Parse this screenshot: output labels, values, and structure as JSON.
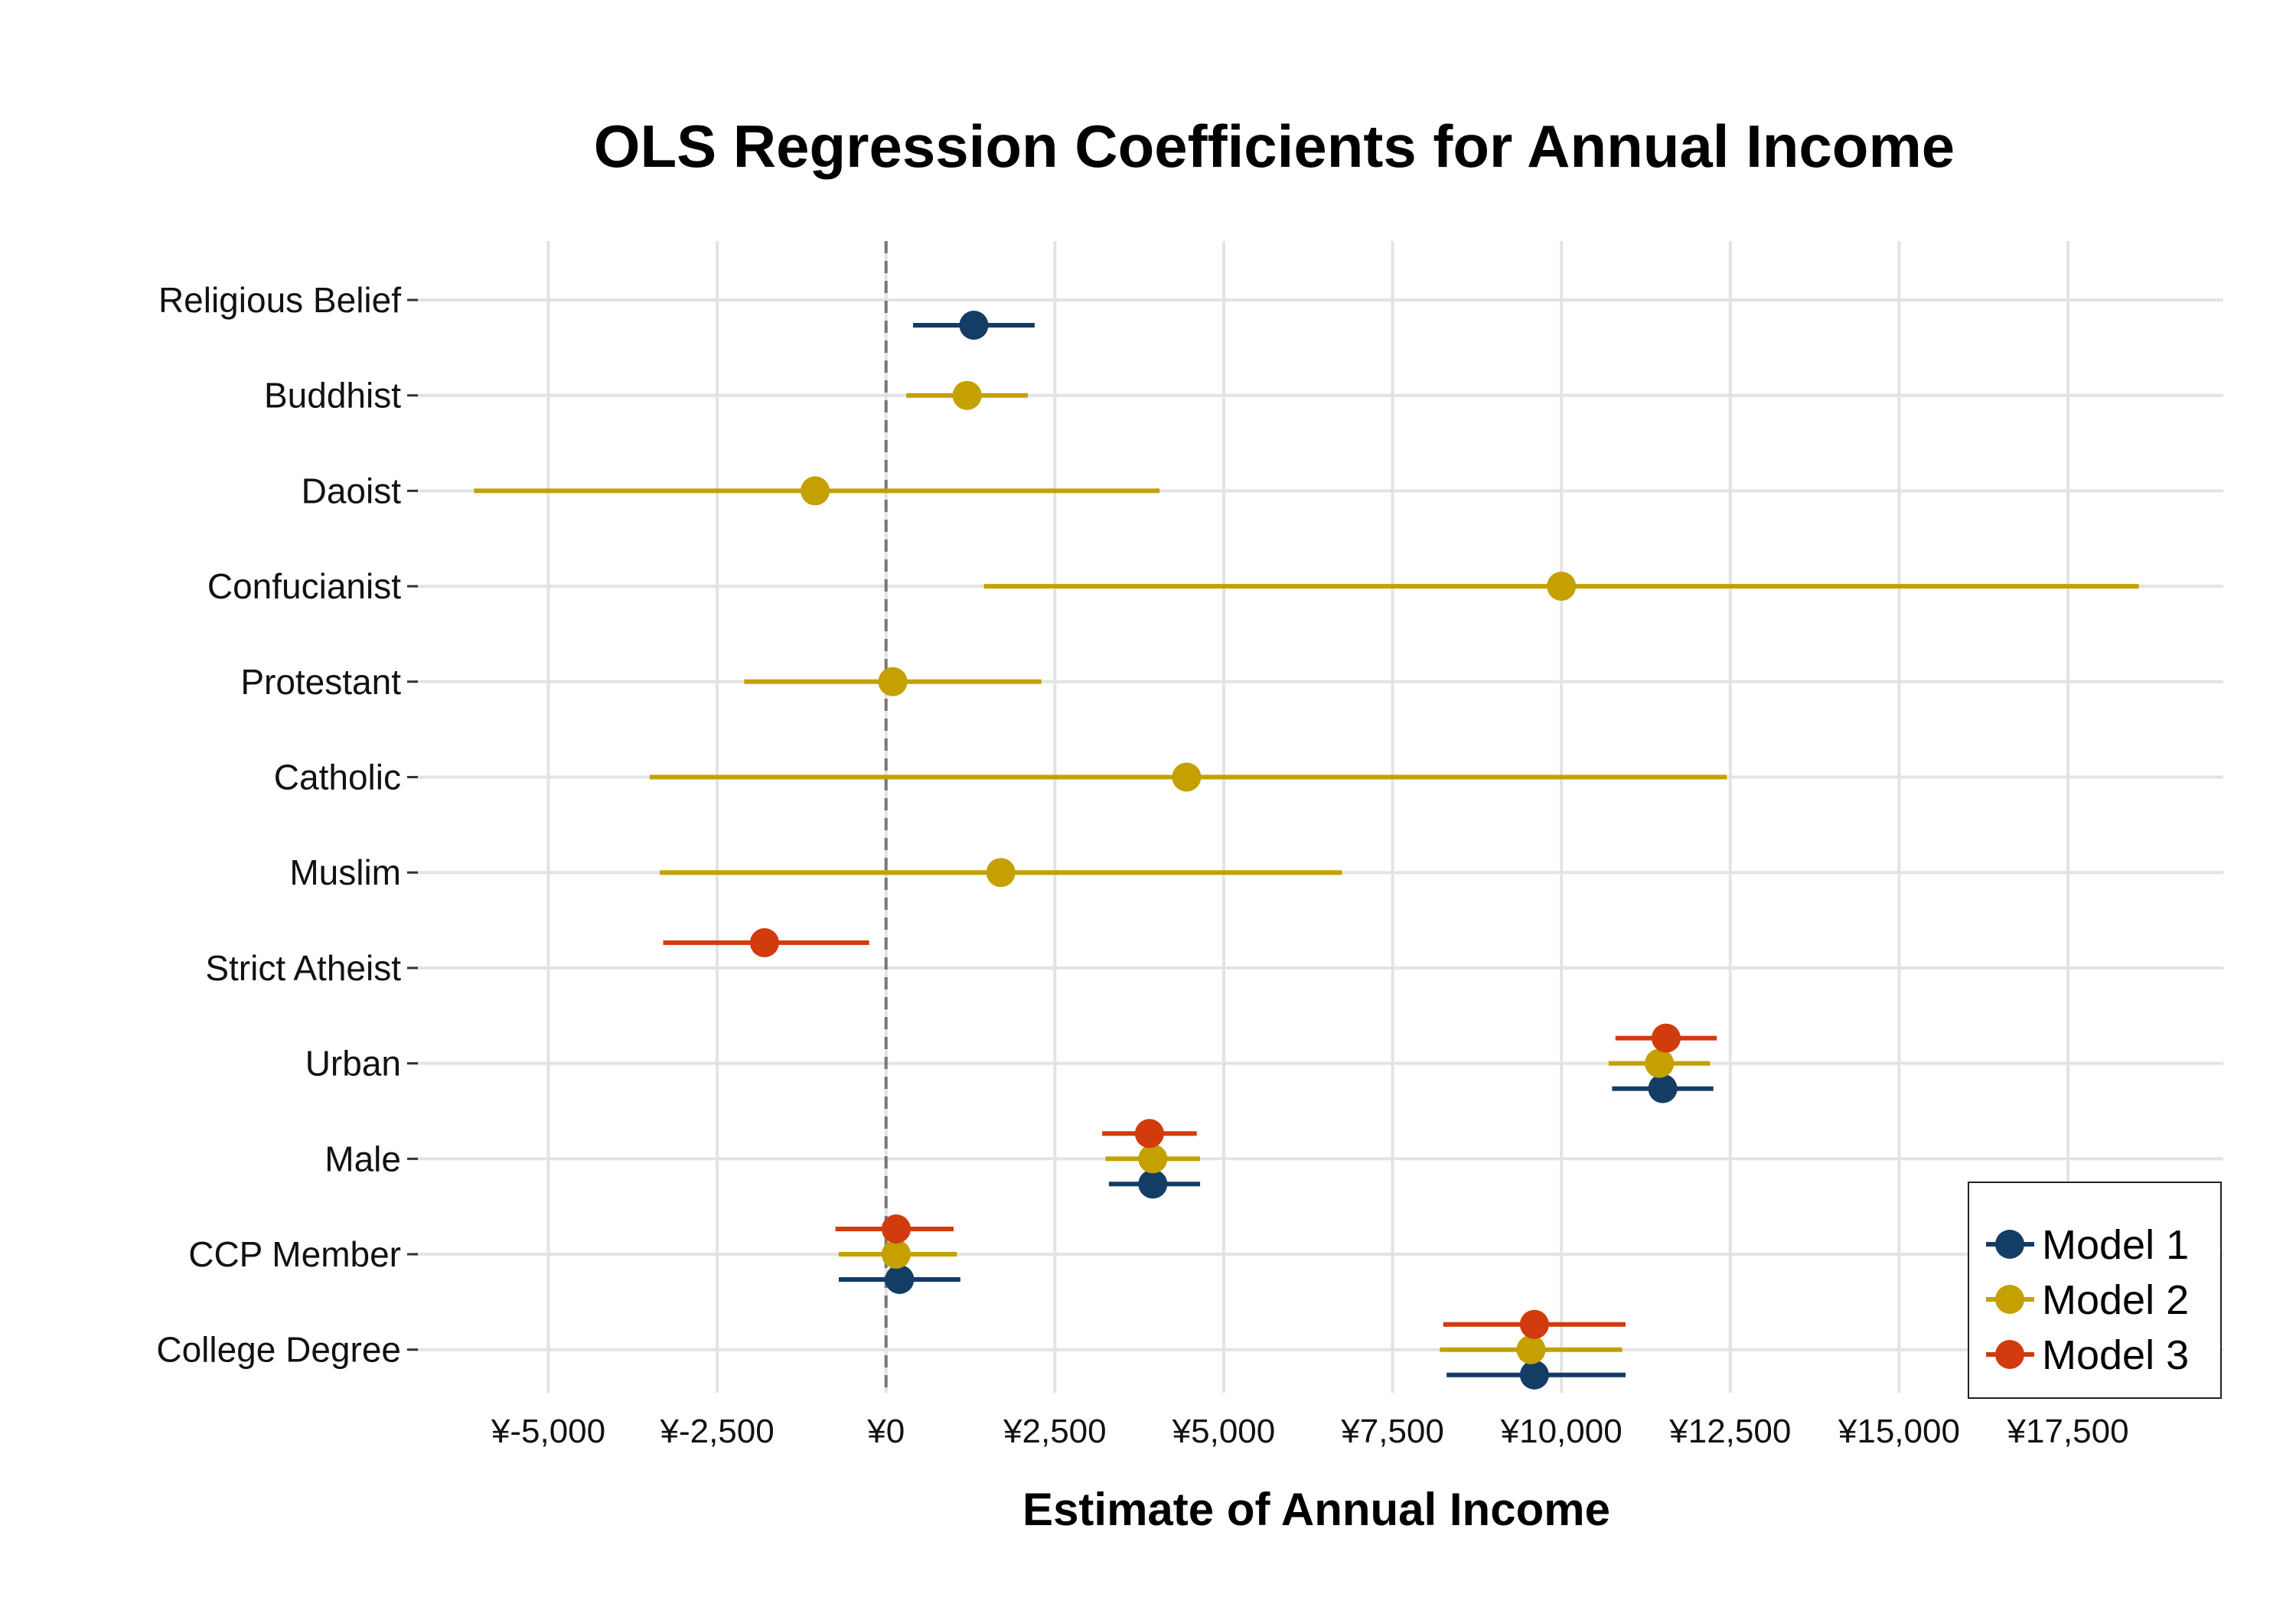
{
  "chart_data": {
    "type": "scatter",
    "title": "OLS Regression Coefficients for Annual Income",
    "xlabel": "Estimate of Annual Income",
    "ylabel": "",
    "xlim": [
      -7000,
      19800
    ],
    "x_ticks": [
      -5000,
      -2500,
      0,
      2500,
      5000,
      7500,
      10000,
      12500,
      15000,
      17500
    ],
    "x_tick_labels": [
      "¥-5,000",
      "¥-2,500",
      "¥0",
      "¥2,500",
      "¥5,000",
      "¥7,500",
      "¥10,000",
      "¥12,500",
      "¥15,000",
      "¥17,500"
    ],
    "reference_line_x": 0,
    "grid": true,
    "legend_position": "bottom-right",
    "categories": [
      "Religious Belief",
      "Buddhist",
      "Daoist",
      "Confucianist",
      "Protestant",
      "Catholic",
      "Muslim",
      "Strict Atheist",
      "Urban",
      "Male",
      "CCP Member",
      "College Degree"
    ],
    "series": [
      {
        "name": "Model 1",
        "color": "#143d66",
        "points": [
          {
            "category": "Religious Belief",
            "estimate": 1300,
            "low": 400,
            "high": 2200
          },
          {
            "category": "Urban",
            "estimate": 11500,
            "low": 10750,
            "high": 12250
          },
          {
            "category": "Male",
            "estimate": 3950,
            "low": 3300,
            "high": 4650
          },
          {
            "category": "CCP Member",
            "estimate": 200,
            "low": -700,
            "high": 1100
          },
          {
            "category": "College Degree",
            "estimate": 9600,
            "low": 8300,
            "high": 10950
          }
        ]
      },
      {
        "name": "Model 2",
        "color": "#c4a000",
        "points": [
          {
            "category": "Buddhist",
            "estimate": 1200,
            "low": 300,
            "high": 2100
          },
          {
            "category": "Daoist",
            "estimate": -1050,
            "low": -6100,
            "high": 4050
          },
          {
            "category": "Confucianist",
            "estimate": 10000,
            "low": 1450,
            "high": 18550
          },
          {
            "category": "Protestant",
            "estimate": 100,
            "low": -2100,
            "high": 2300
          },
          {
            "category": "Catholic",
            "estimate": 4450,
            "low": -3500,
            "high": 12450
          },
          {
            "category": "Muslim",
            "estimate": 1700,
            "low": -3350,
            "high": 6750
          },
          {
            "category": "Urban",
            "estimate": 11450,
            "low": 10700,
            "high": 12200
          },
          {
            "category": "Male",
            "estimate": 3950,
            "low": 3250,
            "high": 4650
          },
          {
            "category": "CCP Member",
            "estimate": 150,
            "low": -700,
            "high": 1050
          },
          {
            "category": "College Degree",
            "estimate": 9550,
            "low": 8200,
            "high": 10900
          }
        ]
      },
      {
        "name": "Model 3",
        "color": "#d13b0d",
        "points": [
          {
            "category": "Strict Atheist",
            "estimate": -1800,
            "low": -3300,
            "high": -250
          },
          {
            "category": "Urban",
            "estimate": 11550,
            "low": 10800,
            "high": 12300
          },
          {
            "category": "Male",
            "estimate": 3900,
            "low": 3200,
            "high": 4600
          },
          {
            "category": "CCP Member",
            "estimate": 150,
            "low": -750,
            "high": 1000
          },
          {
            "category": "College Degree",
            "estimate": 9600,
            "low": 8250,
            "high": 10950
          }
        ]
      }
    ]
  }
}
